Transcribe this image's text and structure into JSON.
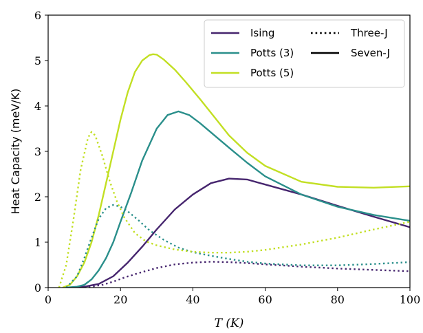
{
  "chart_data": {
    "type": "line",
    "title": "",
    "xlabel": "T (K)",
    "ylabel": "Heat Capacity (meV/K)",
    "xlim": [
      0,
      100
    ],
    "ylim": [
      0,
      6
    ],
    "xticks": [
      0,
      20,
      40,
      60,
      80,
      100
    ],
    "yticks": [
      0,
      1,
      2,
      3,
      4,
      5,
      6
    ],
    "grid": false,
    "legend_position": "top-right",
    "legend": {
      "colors": [
        {
          "name": "Ising",
          "color": "#46256e"
        },
        {
          "name": "Potts (3)",
          "color": "#2a8f8b"
        },
        {
          "name": "Potts (5)",
          "color": "#c2df23"
        }
      ],
      "styles": [
        {
          "name": "Three-J",
          "dash": "dotted"
        },
        {
          "name": "Seven-J",
          "dash": "solid"
        }
      ]
    },
    "series": [
      {
        "model": "Ising",
        "coupling": "Seven-J",
        "color": "#46256e",
        "dash": "solid",
        "x": [
          7,
          10,
          14,
          18,
          22,
          26,
          30,
          35,
          40,
          45,
          50,
          55,
          60,
          70,
          80,
          90,
          100
        ],
        "y": [
          0.0,
          0.02,
          0.08,
          0.25,
          0.55,
          0.9,
          1.28,
          1.72,
          2.05,
          2.3,
          2.4,
          2.38,
          2.27,
          2.05,
          1.8,
          1.56,
          1.33
        ]
      },
      {
        "model": "Potts (3)",
        "coupling": "Seven-J",
        "color": "#2a8f8b",
        "dash": "solid",
        "x": [
          5,
          8,
          10,
          12,
          14,
          16,
          18,
          20,
          23,
          26,
          30,
          33,
          36,
          39,
          42,
          46,
          50,
          55,
          60,
          70,
          80,
          90,
          100
        ],
        "y": [
          0.0,
          0.02,
          0.06,
          0.18,
          0.38,
          0.65,
          1.0,
          1.45,
          2.1,
          2.8,
          3.5,
          3.8,
          3.88,
          3.8,
          3.62,
          3.35,
          3.08,
          2.75,
          2.45,
          2.05,
          1.78,
          1.6,
          1.47
        ]
      },
      {
        "model": "Potts (5)",
        "coupling": "Seven-J",
        "color": "#c2df23",
        "dash": "solid",
        "x": [
          4,
          6,
          8,
          10,
          12,
          14,
          16,
          18,
          20,
          22,
          24,
          26,
          28,
          29,
          30,
          32,
          35,
          38,
          42,
          46,
          50,
          55,
          60,
          70,
          80,
          90,
          100
        ],
        "y": [
          0.0,
          0.06,
          0.25,
          0.55,
          1.0,
          1.6,
          2.3,
          3.0,
          3.7,
          4.3,
          4.75,
          5.0,
          5.12,
          5.14,
          5.13,
          5.02,
          4.8,
          4.53,
          4.15,
          3.75,
          3.35,
          2.97,
          2.68,
          2.33,
          2.22,
          2.2,
          2.23
        ]
      },
      {
        "model": "Ising",
        "coupling": "Three-J",
        "color": "#46256e",
        "dash": "dotted",
        "x": [
          10,
          12,
          15,
          18,
          21,
          25,
          30,
          35,
          40,
          45,
          50,
          55,
          60,
          70,
          80,
          90,
          100
        ],
        "y": [
          0.0,
          0.02,
          0.06,
          0.13,
          0.22,
          0.32,
          0.43,
          0.51,
          0.55,
          0.57,
          0.56,
          0.54,
          0.51,
          0.46,
          0.42,
          0.39,
          0.36
        ]
      },
      {
        "model": "Potts (3)",
        "coupling": "Three-J",
        "color": "#2a8f8b",
        "dash": "dotted",
        "x": [
          5,
          8,
          10,
          12,
          14,
          16,
          18,
          20,
          22,
          25,
          28,
          32,
          36,
          40,
          45,
          50,
          55,
          60,
          70,
          80,
          90,
          100
        ],
        "y": [
          0.0,
          0.25,
          0.65,
          1.1,
          1.52,
          1.75,
          1.82,
          1.78,
          1.68,
          1.48,
          1.26,
          1.05,
          0.88,
          0.78,
          0.7,
          0.63,
          0.57,
          0.53,
          0.49,
          0.49,
          0.52,
          0.56
        ]
      },
      {
        "model": "Potts (5)",
        "coupling": "Three-J",
        "color": "#c2df23",
        "dash": "dotted",
        "x": [
          3,
          5,
          7,
          9,
          11,
          12,
          13,
          15,
          17,
          19,
          21,
          24,
          27,
          30,
          35,
          40,
          45,
          50,
          55,
          60,
          70,
          80,
          90,
          100
        ],
        "y": [
          0.0,
          0.5,
          1.5,
          2.6,
          3.3,
          3.43,
          3.35,
          2.9,
          2.35,
          1.9,
          1.55,
          1.2,
          1.02,
          0.93,
          0.84,
          0.79,
          0.77,
          0.77,
          0.79,
          0.83,
          0.95,
          1.1,
          1.28,
          1.45
        ]
      }
    ]
  }
}
